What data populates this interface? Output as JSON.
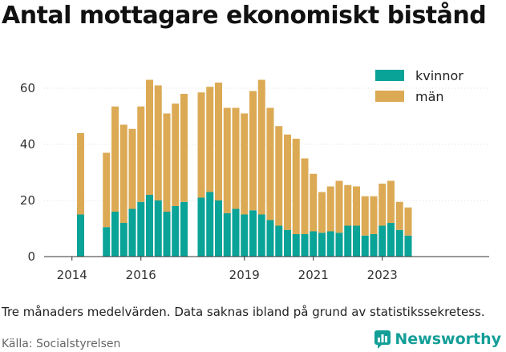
{
  "title": "Antal mottagare ekonomiskt bistånd",
  "note": "Tre månaders medelvärden. Data saknas ibland på grund av statistikssekretess.",
  "source": "Källa: Socialstyrelsen",
  "logo": {
    "text": "Newsworthy",
    "icon": "newsworthy-chart-icon"
  },
  "colors": {
    "kvinnor": "#0aa398",
    "man": "#dcaa55"
  },
  "chart_data": {
    "type": "bar",
    "stacked": true,
    "title": "Antal mottagare ekonomiskt bistånd",
    "xlabel": "",
    "ylabel": "",
    "ylim": [
      0,
      70
    ],
    "yticks": [
      0,
      20,
      40,
      60
    ],
    "xticks": [
      "2014",
      "2016",
      "2019",
      "2021",
      "2023"
    ],
    "grid": true,
    "legend_position": "top-right",
    "x_start": 2013.75,
    "x_step": 0.25,
    "series": [
      {
        "name": "kvinnor",
        "color": "#0aa398",
        "values": [
          null,
          null,
          15,
          null,
          null,
          10.5,
          16,
          12,
          17,
          19.5,
          22,
          20,
          16,
          18,
          19.5,
          null,
          21,
          23,
          20,
          15.5,
          17,
          15,
          16.5,
          15,
          13,
          11,
          9.5,
          8,
          8,
          9,
          8.5,
          9,
          8.5,
          11,
          11,
          7.5,
          8,
          11,
          12,
          9.5,
          7.5
        ]
      },
      {
        "name": "män",
        "color": "#dcaa55",
        "values": [
          null,
          null,
          29,
          null,
          null,
          26.5,
          37.5,
          35,
          28.5,
          34,
          41,
          41,
          35,
          36.5,
          38.5,
          null,
          37.5,
          37.5,
          42,
          37.5,
          36,
          36,
          42.5,
          48,
          40,
          35.5,
          34,
          34,
          27,
          20.5,
          14.5,
          16,
          18.5,
          14.5,
          14,
          14,
          13.5,
          15,
          15,
          10,
          10
        ]
      }
    ]
  }
}
